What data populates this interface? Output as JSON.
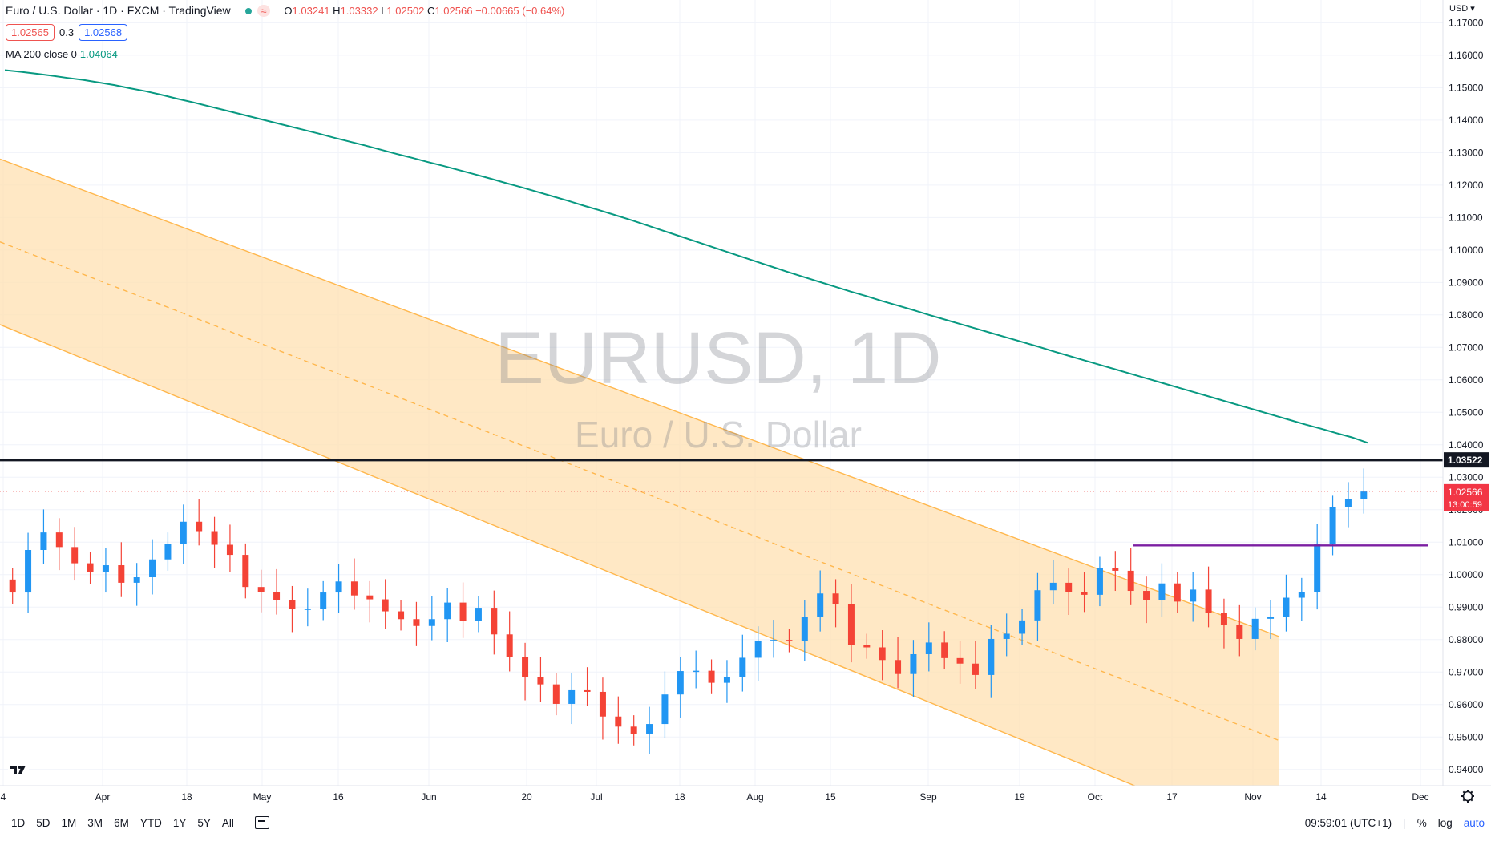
{
  "legend": {
    "title": "Euro / U.S. Dollar · 1D · FXCM · TradingView",
    "open_label": "O",
    "open": "1.03241",
    "high_label": "H",
    "high": "1.03332",
    "low_label": "L",
    "low": "1.02502",
    "close_label": "C",
    "close": "1.02566",
    "change": "−0.00665 (−0.64%)",
    "bid": "1.02565",
    "spread": "0.3",
    "ask": "1.02568",
    "ma_label": "MA 200 close 0",
    "ma_value": "1.04064"
  },
  "watermark": {
    "symbol": "EURUSD, 1D",
    "name": "Euro / U.S. Dollar"
  },
  "axis": {
    "currency": "USD",
    "price_ticks": [
      "1.17000",
      "1.16000",
      "1.15000",
      "1.14000",
      "1.13000",
      "1.12000",
      "1.11000",
      "1.10000",
      "1.09000",
      "1.08000",
      "1.07000",
      "1.06000",
      "1.05000",
      "1.04000",
      "1.03000",
      "1.02000",
      "1.01000",
      "1.00000",
      "0.99000",
      "0.98000",
      "0.97000",
      "0.96000",
      "0.95000",
      "0.94000"
    ],
    "time_ticks": [
      "4",
      "Apr",
      "18",
      "May",
      "16",
      "Jun",
      "20",
      "Jul",
      "18",
      "Aug",
      "15",
      "Sep",
      "19",
      "Oct",
      "17",
      "Nov",
      "14",
      "Dec"
    ],
    "horizontal_line_label": "1.03522",
    "last_price_label": "1.02566",
    "countdown": "13:00:59"
  },
  "bottom_bar": {
    "timeframes": [
      "1D",
      "5D",
      "1M",
      "3M",
      "6M",
      "YTD",
      "1Y",
      "5Y",
      "All"
    ],
    "clock": "09:59:01 (UTC+1)",
    "percent": "%",
    "log": "log",
    "auto": "auto"
  },
  "colors": {
    "up": "#2196f3",
    "down": "#f44336",
    "ma": "#089981",
    "channel": "#ffb74d",
    "channel_fill": "#ffe0b2",
    "support": "#7b1fa2"
  },
  "chart_data": {
    "type": "candlestick",
    "price_range": [
      0.935,
      1.177
    ],
    "closes": [
      0.9945,
      1.0076,
      1.013,
      1.0085,
      1.0035,
      1.0007,
      1.0029,
      0.9975,
      0.9992,
      1.0047,
      1.0095,
      1.0163,
      1.0134,
      1.0092,
      1.0061,
      0.9962,
      0.9946,
      0.9921,
      0.9894,
      0.9895,
      0.9945,
      0.9979,
      0.9936,
      0.9924,
      0.9887,
      0.9863,
      0.9842,
      0.9863,
      0.9914,
      0.9858,
      0.9898,
      0.9816,
      0.9746,
      0.9684,
      0.9662,
      0.9602,
      0.9644,
      0.9639,
      0.9563,
      0.9532,
      0.9509,
      0.954,
      0.9631,
      0.9703,
      0.9704,
      0.9667,
      0.9684,
      0.9744,
      0.9797,
      0.9799,
      0.9796,
      0.9869,
      0.9942,
      0.9909,
      0.9783,
      0.9776,
      0.9737,
      0.9694,
      0.9755,
      0.9791,
      0.9743,
      0.9726,
      0.9691,
      0.9802,
      0.9818,
      0.9859,
      0.9952,
      0.9975,
      0.9947,
      0.9938,
      1.002,
      1.0012,
      0.995,
      0.9922,
      0.9973,
      0.9917,
      0.9954,
      0.9882,
      0.9844,
      0.9802,
      0.9864,
      0.9869,
      0.9929,
      0.9946,
      1.0095,
      1.0208,
      1.0232,
      1.0256
    ],
    "ma200": [
      1.1554,
      1.1549,
      1.1543,
      1.1537,
      1.153,
      1.1524,
      1.1516,
      1.1508,
      1.1498,
      1.1489,
      1.1478,
      1.1466,
      1.1455,
      1.1443,
      1.1431,
      1.1419,
      1.1407,
      1.1395,
      1.1383,
      1.1371,
      1.1359,
      1.1346,
      1.1334,
      1.1322,
      1.1309,
      1.1296,
      1.1284,
      1.1271,
      1.1259,
      1.1246,
      1.1233,
      1.122,
      1.1206,
      1.1193,
      1.1179,
      1.1165,
      1.1151,
      1.1136,
      1.1122,
      1.1107,
      1.1092,
      1.1076,
      1.106,
      1.1044,
      1.1028,
      1.1012,
      1.0996,
      1.098,
      1.0964,
      1.0948,
      1.0932,
      1.0917,
      1.0902,
      1.0887,
      1.0872,
      1.0858,
      1.0843,
      1.0829,
      1.0815,
      1.08,
      1.0786,
      1.0772,
      1.0758,
      1.0744,
      1.073,
      1.0716,
      1.0702,
      1.0687,
      1.0673,
      1.0659,
      1.0645,
      1.0631,
      1.0617,
      1.0603,
      1.0589,
      1.0575,
      1.0561,
      1.0547,
      1.0533,
      1.0519,
      1.0505,
      1.0491,
      1.0477,
      1.0463,
      1.045,
      1.0436,
      1.0423,
      1.0406
    ],
    "horizontal_line": 1.03522,
    "support_line": 1.009,
    "last_price": 1.02566
  }
}
